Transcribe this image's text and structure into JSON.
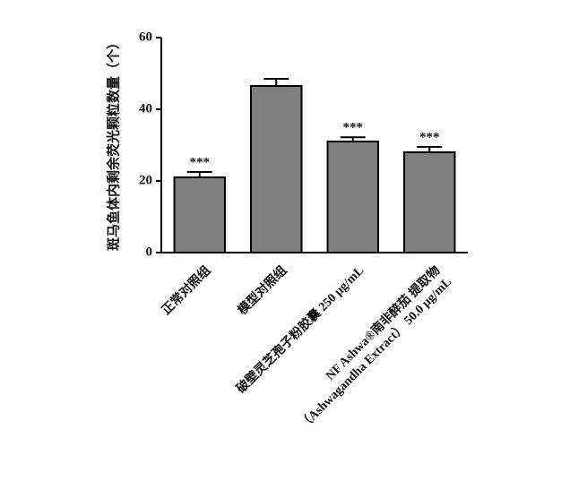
{
  "chart_data": {
    "type": "bar",
    "ylabel": "斑马鱼体内剩余荧光颗粒数量（个）",
    "categories": [
      "正常对照组",
      "模型对照组",
      "破壁灵芝孢子粉胶囊 250 μg/mL",
      "NF Ashwa®南非醉茄 提取物（Ashwagandha Extract） 50.0 μg/mL"
    ],
    "values": [
      21,
      46.5,
      31,
      28
    ],
    "errors": [
      1.5,
      2,
      1.2,
      1.5
    ],
    "annotations": [
      "***",
      null,
      "***",
      "***"
    ],
    "color": "#808080",
    "ylim": [
      0,
      60
    ],
    "yticks": [
      0,
      20,
      40,
      60
    ]
  }
}
